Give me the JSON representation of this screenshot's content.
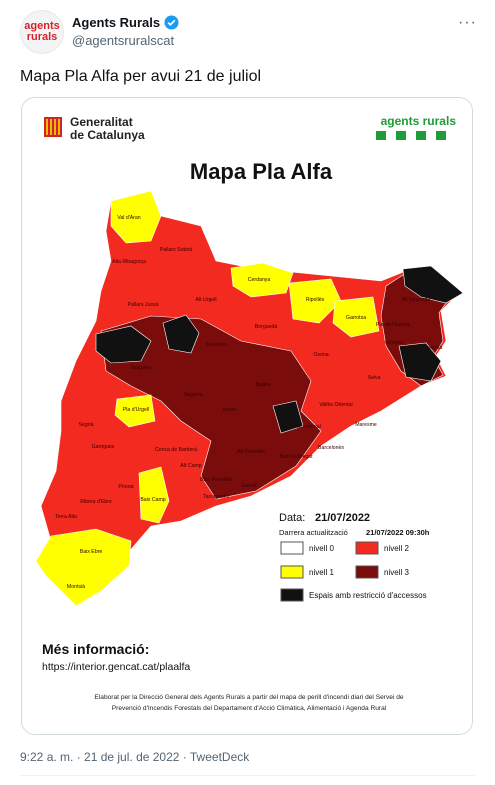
{
  "tweet": {
    "author": {
      "name": "Agents Rurals",
      "handle": "@agentsruralscat",
      "avatar_text": [
        "agents",
        "rurals"
      ]
    },
    "text": "Mapa Pla Alfa per avui 21 de juliol",
    "image": {
      "logo": [
        "Generalitat",
        "de Catalunya"
      ],
      "brand": "agents rurals",
      "title": "Mapa Pla Alfa",
      "date_label": "Data:",
      "date": "21/07/2022",
      "update_label": "Darrera actualització",
      "update": "21/07/2022 09:30h",
      "legend": [
        "nivell 0",
        "nivell 2",
        "nivell 1",
        "nivell 3",
        "Espais amb restricció d'accessos"
      ],
      "more_label": "Més informació:",
      "url": "https://interior.gencat.cat/plaalfa",
      "credits": [
        "Elaborat per la Direcció General dels Agents Rurals a partir del mapa de perill d'incendi diari del Servei de",
        "Prevenció d'Incendis Forestals del Departament d'Acció Climàtica, Alimentació i Agenda Rural"
      ],
      "regions": [
        "Val d'Aran",
        "Pallars Sobirà",
        "Alta Ribagorça",
        "Pallars Jussà",
        "Alt Urgell",
        "Cerdanya",
        "Ripollès",
        "Garrotxa",
        "Alt Empordà",
        "Pla de l'Estany",
        "Gironès",
        "Baix Empordà",
        "Selva",
        "Osona",
        "Berguedà",
        "Solsonès",
        "Noguera",
        "Segarra",
        "Bages",
        "Pla d'Urgell",
        "Segrià",
        "Anoia",
        "Vallès Occidental",
        "Vallès Oriental",
        "Maresme",
        "Garrigues",
        "Conca de Barberà",
        "Alt Camp",
        "Alt Penedès",
        "Baix Llobregat",
        "Barcelonès",
        "Garraf",
        "Baix Penedès",
        "Tarragonès",
        "Priorat",
        "Ribera d'Ebre",
        "Terra Alta",
        "Baix Camp",
        "Baix Ebre",
        "Montsià"
      ]
    },
    "footer": "9:22 a. m. · 21 de jul. de 2022 · TweetDeck"
  }
}
